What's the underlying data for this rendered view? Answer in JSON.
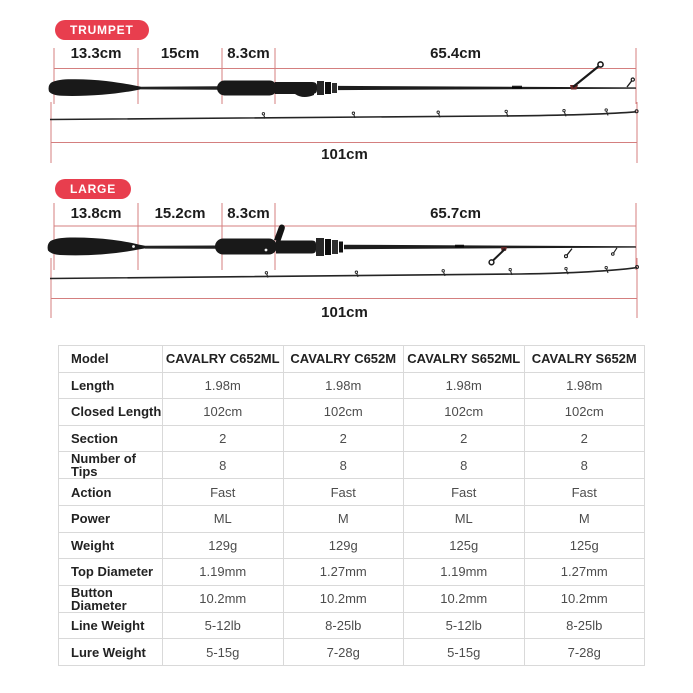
{
  "colors": {
    "badge_red": "#e83e4e",
    "dim_line": "#d47f7f",
    "rod_dark": "#191919"
  },
  "diagrams": [
    {
      "badge": "TRUMPET",
      "segments": [
        {
          "label": "13.3cm"
        },
        {
          "label": "15cm"
        },
        {
          "label": "8.3cm"
        },
        {
          "label": "65.4cm"
        }
      ],
      "total": "101cm"
    },
    {
      "badge": "LARGE",
      "segments": [
        {
          "label": "13.8cm"
        },
        {
          "label": "15.2cm"
        },
        {
          "label": "8.3cm"
        },
        {
          "label": "65.7cm"
        }
      ],
      "total": "101cm"
    }
  ],
  "table": {
    "header": [
      "Model",
      "CAVALRY C652ML",
      "CAVALRY C652M",
      "CAVALRY S652ML",
      "CAVALRY S652M"
    ],
    "rows": [
      {
        "label": "Length",
        "values": [
          "1.98m",
          "1.98m",
          "1.98m",
          "1.98m"
        ]
      },
      {
        "label": "Closed Length",
        "values": [
          "102cm",
          "102cm",
          "102cm",
          "102cm"
        ]
      },
      {
        "label": "Section",
        "values": [
          "2",
          "2",
          "2",
          "2"
        ]
      },
      {
        "label": "Number of Tips",
        "values": [
          "8",
          "8",
          "8",
          "8"
        ]
      },
      {
        "label": "Action",
        "values": [
          "Fast",
          "Fast",
          "Fast",
          "Fast"
        ]
      },
      {
        "label": "Power",
        "values": [
          "ML",
          "M",
          "ML",
          "M"
        ]
      },
      {
        "label": "Weight",
        "values": [
          "129g",
          "129g",
          "125g",
          "125g"
        ]
      },
      {
        "label": "Top Diameter",
        "values": [
          "1.19mm",
          "1.27mm",
          "1.19mm",
          "1.27mm"
        ]
      },
      {
        "label": "Button Diameter",
        "values": [
          "10.2mm",
          "10.2mm",
          "10.2mm",
          "10.2mm"
        ]
      },
      {
        "label": "Line Weight",
        "values": [
          "5-12lb",
          "8-25lb",
          "5-12lb",
          "8-25lb"
        ]
      },
      {
        "label": "Lure Weight",
        "values": [
          "5-15g",
          "7-28g",
          "5-15g",
          "7-28g"
        ]
      }
    ]
  }
}
